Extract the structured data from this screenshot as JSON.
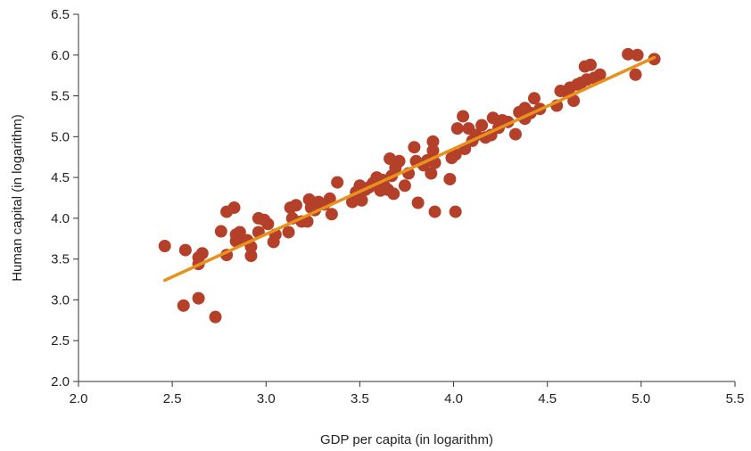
{
  "chart_data": {
    "type": "scatter",
    "title": "",
    "xlabel": "GDP per capita (in logarithm)",
    "ylabel": "Human capital (in logarithm)",
    "xlim": [
      2.0,
      5.5
    ],
    "ylim": [
      2.0,
      6.5
    ],
    "xticks": [
      "2.0",
      "2.5",
      "3.0",
      "3.5",
      "4.0",
      "4.5",
      "5.0",
      "5.5"
    ],
    "yticks": [
      "2.0",
      "2.5",
      "3.0",
      "3.5",
      "4.0",
      "4.5",
      "5.0",
      "5.5",
      "6.0",
      "6.5"
    ],
    "grid": false,
    "legend": "none",
    "colors": {
      "points": "#b5402a",
      "trendline": "#e8921e",
      "axis": "#333333"
    },
    "points": [
      [
        2.46,
        3.66
      ],
      [
        2.57,
        3.61
      ],
      [
        2.56,
        2.93
      ],
      [
        2.64,
        3.02
      ],
      [
        2.73,
        2.79
      ],
      [
        2.64,
        3.44
      ],
      [
        2.64,
        3.52
      ],
      [
        2.66,
        3.57
      ],
      [
        2.79,
        3.55
      ],
      [
        2.76,
        3.84
      ],
      [
        2.79,
        4.08
      ],
      [
        2.83,
        4.13
      ],
      [
        2.84,
        3.8
      ],
      [
        2.84,
        3.72
      ],
      [
        2.86,
        3.83
      ],
      [
        2.9,
        3.73
      ],
      [
        2.92,
        3.54
      ],
      [
        2.92,
        3.65
      ],
      [
        2.96,
        3.83
      ],
      [
        2.96,
        4.0
      ],
      [
        2.99,
        3.98
      ],
      [
        3.01,
        3.93
      ],
      [
        3.04,
        3.71
      ],
      [
        3.05,
        3.8
      ],
      [
        3.12,
        3.83
      ],
      [
        3.13,
        4.13
      ],
      [
        3.14,
        4.0
      ],
      [
        3.16,
        4.16
      ],
      [
        3.19,
        3.96
      ],
      [
        3.22,
        3.96
      ],
      [
        3.23,
        4.23
      ],
      [
        3.24,
        4.13
      ],
      [
        3.26,
        4.1
      ],
      [
        3.28,
        4.2
      ],
      [
        3.31,
        4.17
      ],
      [
        3.34,
        4.24
      ],
      [
        3.35,
        4.05
      ],
      [
        3.38,
        4.44
      ],
      [
        3.46,
        4.2
      ],
      [
        3.48,
        4.32
      ],
      [
        3.5,
        4.4
      ],
      [
        3.51,
        4.22
      ],
      [
        3.53,
        4.35
      ],
      [
        3.55,
        4.38
      ],
      [
        3.57,
        4.43
      ],
      [
        3.59,
        4.5
      ],
      [
        3.61,
        4.34
      ],
      [
        3.62,
        4.47
      ],
      [
        3.63,
        4.4
      ],
      [
        3.65,
        4.35
      ],
      [
        3.66,
        4.73
      ],
      [
        3.67,
        4.52
      ],
      [
        3.68,
        4.3
      ],
      [
        3.69,
        4.62
      ],
      [
        3.71,
        4.7
      ],
      [
        3.74,
        4.4
      ],
      [
        3.76,
        4.55
      ],
      [
        3.79,
        4.87
      ],
      [
        3.8,
        4.7
      ],
      [
        3.81,
        4.19
      ],
      [
        3.84,
        4.65
      ],
      [
        3.86,
        4.71
      ],
      [
        3.88,
        4.55
      ],
      [
        3.89,
        4.83
      ],
      [
        3.89,
        4.94
      ],
      [
        3.9,
        4.68
      ],
      [
        3.9,
        4.08
      ],
      [
        3.98,
        4.48
      ],
      [
        3.99,
        4.74
      ],
      [
        4.01,
        4.78
      ],
      [
        4.01,
        4.08
      ],
      [
        4.02,
        5.1
      ],
      [
        4.05,
        5.25
      ],
      [
        4.06,
        4.85
      ],
      [
        4.08,
        5.1
      ],
      [
        4.1,
        4.95
      ],
      [
        4.12,
        5.02
      ],
      [
        4.15,
        5.14
      ],
      [
        4.17,
        4.99
      ],
      [
        4.2,
        5.02
      ],
      [
        4.21,
        5.23
      ],
      [
        4.24,
        5.11
      ],
      [
        4.26,
        5.2
      ],
      [
        4.29,
        5.18
      ],
      [
        4.33,
        5.03
      ],
      [
        4.35,
        5.3
      ],
      [
        4.38,
        5.35
      ],
      [
        4.38,
        5.22
      ],
      [
        4.41,
        5.29
      ],
      [
        4.43,
        5.47
      ],
      [
        4.46,
        5.34
      ],
      [
        4.55,
        5.38
      ],
      [
        4.57,
        5.56
      ],
      [
        4.6,
        5.55
      ],
      [
        4.62,
        5.6
      ],
      [
        4.64,
        5.44
      ],
      [
        4.66,
        5.64
      ],
      [
        4.68,
        5.66
      ],
      [
        4.7,
        5.86
      ],
      [
        4.71,
        5.7
      ],
      [
        4.73,
        5.88
      ],
      [
        4.75,
        5.72
      ],
      [
        4.78,
        5.76
      ],
      [
        4.93,
        6.01
      ],
      [
        4.97,
        5.76
      ],
      [
        4.98,
        6.0
      ],
      [
        5.07,
        5.95
      ]
    ],
    "trendline": {
      "x": [
        2.46,
        5.07
      ],
      "y": [
        3.24,
        5.97
      ]
    }
  }
}
